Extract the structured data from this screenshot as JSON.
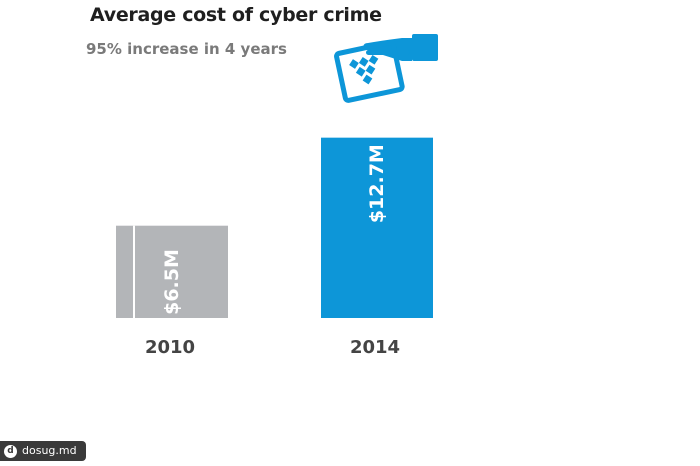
{
  "chart_data": {
    "type": "bar",
    "title": "Average cost of cyber crime",
    "subtitle": "95% increase in 4 years",
    "categories": [
      "2010",
      "2014"
    ],
    "values": [
      6.5,
      12.7
    ],
    "data_labels": [
      "$6.5M",
      "$12.7M"
    ],
    "unit": "$M",
    "ylim": [
      0,
      14
    ],
    "grid": false,
    "legend": "none",
    "colors": [
      "#b3b5b8",
      "#0d96d8"
    ]
  },
  "icon": {
    "name": "hand-card-icon",
    "color": "#0d96d8"
  },
  "watermark": {
    "text": "dosug.md",
    "logo": "d"
  }
}
